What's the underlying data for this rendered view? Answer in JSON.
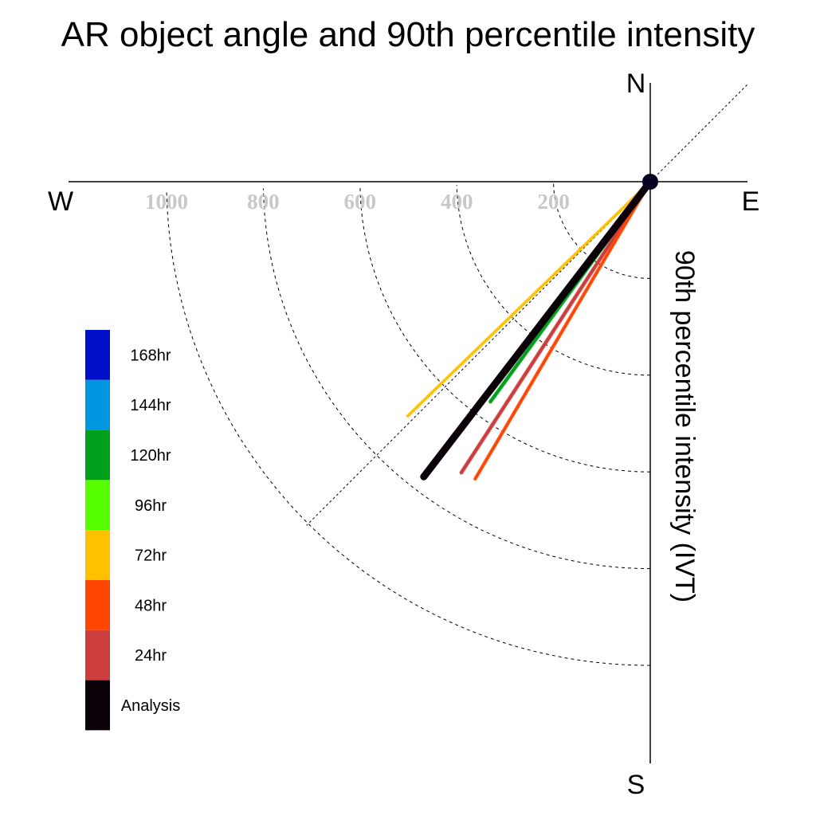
{
  "chart_data": {
    "type": "line",
    "title": "AR object angle and 90th percentile intensity",
    "ylabel": "90th percentile intensity (IVT)",
    "compass": {
      "north": "N",
      "south": "S",
      "east": "E",
      "west": "W"
    },
    "radial_ticks": [
      {
        "value": 200,
        "label": "200"
      },
      {
        "value": 400,
        "label": "400"
      },
      {
        "value": 600,
        "label": "600"
      },
      {
        "value": 800,
        "label": "800"
      },
      {
        "value": 1000,
        "label": "1000"
      }
    ],
    "reference_line_angle_deg": 45,
    "series": [
      {
        "name": "72hr",
        "color": "#ffc000",
        "angle_deg": 46,
        "intensity": 697
      },
      {
        "name": "120hr",
        "color": "#009f1c",
        "angle_deg": 36,
        "intensity": 562
      },
      {
        "name": "96hr",
        "color": "#55ff00",
        "angle_deg": 37.5,
        "intensity": 658
      },
      {
        "name": "144hr",
        "color": "#0097e0",
        "angle_deg": 37.5,
        "intensity": 575
      },
      {
        "name": "168hr",
        "color": "#0010c8",
        "angle_deg": 37,
        "intensity": 520
      },
      {
        "name": "24hr",
        "color": "#cc3e3e",
        "angle_deg": 33,
        "intensity": 717
      },
      {
        "name": "48hr",
        "color": "#ff4500",
        "angle_deg": 30.5,
        "intensity": 713
      },
      {
        "name": "Analysis",
        "color": "#0a0008",
        "angle_deg": 37.5,
        "intensity": 769
      }
    ],
    "legend": {
      "placement": "left",
      "entries": [
        {
          "label": "168hr",
          "color": "#0010c8"
        },
        {
          "label": "144hr",
          "color": "#0097e0"
        },
        {
          "label": "120hr",
          "color": "#009f1c"
        },
        {
          "label": "96hr",
          "color": "#55ff00"
        },
        {
          "label": "72hr",
          "color": "#ffc000"
        },
        {
          "label": "48hr",
          "color": "#ff4500"
        },
        {
          "label": "24hr",
          "color": "#cc3e3e"
        },
        {
          "label": "Analysis",
          "color": "#0a0008"
        }
      ]
    }
  }
}
